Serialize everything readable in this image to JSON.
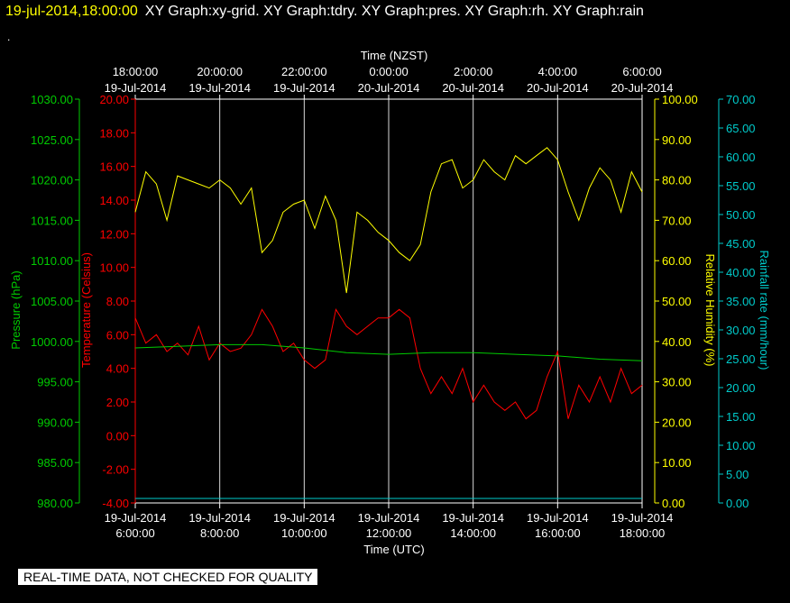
{
  "header": {
    "date_label": "19-jul-2014,18:00:00",
    "graphs_label": "XY Graph:xy-grid.  XY Graph:tdry.  XY Graph:pres.  XY Graph:rh.  XY Graph:rain",
    "dot": "."
  },
  "footer": {
    "quality_note": "REAL-TIME DATA, NOT CHECKED FOR QUALITY"
  },
  "chart_data": {
    "type": "line",
    "top_axis": {
      "label": "Time (NZST)",
      "ticks": [
        {
          "time": "18:00:00",
          "date": "19-Jul-2014"
        },
        {
          "time": "20:00:00",
          "date": "19-Jul-2014"
        },
        {
          "time": "22:00:00",
          "date": "19-Jul-2014"
        },
        {
          "time": "0:00:00",
          "date": "20-Jul-2014"
        },
        {
          "time": "2:00:00",
          "date": "20-Jul-2014"
        },
        {
          "time": "4:00:00",
          "date": "20-Jul-2014"
        },
        {
          "time": "6:00:00",
          "date": "20-Jul-2014"
        }
      ]
    },
    "bottom_axis": {
      "label": "Time (UTC)",
      "ticks": [
        {
          "date": "19-Jul-2014",
          "time": "6:00:00"
        },
        {
          "date": "19-Jul-2014",
          "time": "8:00:00"
        },
        {
          "date": "19-Jul-2014",
          "time": "10:00:00"
        },
        {
          "date": "19-Jul-2014",
          "time": "12:00:00"
        },
        {
          "date": "19-Jul-2014",
          "time": "14:00:00"
        },
        {
          "date": "19-Jul-2014",
          "time": "16:00:00"
        },
        {
          "date": "19-Jul-2014",
          "time": "18:00:00"
        }
      ],
      "x_hours_range": [
        6,
        18
      ],
      "grid": true
    },
    "y_axes": [
      {
        "id": "pressure",
        "label": "Pressure (hPa)",
        "color": "#00cc00",
        "min": 980,
        "max": 1030,
        "ticks": [
          "980.00",
          "985.00",
          "990.00",
          "995.00",
          "1000.00",
          "1005.00",
          "1010.00",
          "1015.00",
          "1020.00",
          "1025.00",
          "1030.00"
        ]
      },
      {
        "id": "temperature",
        "label": "Temperature (Celsius)",
        "color": "#ff0000",
        "min": -4,
        "max": 20,
        "ticks": [
          "-4.00",
          "-2.00",
          "0.00",
          "2.00",
          "4.00",
          "6.00",
          "8.00",
          "10.00",
          "12.00",
          "14.00",
          "16.00",
          "18.00",
          "20.00"
        ]
      },
      {
        "id": "humidity",
        "label": "Relative Humidity (%)",
        "color": "#ffff00",
        "min": 0,
        "max": 100,
        "ticks": [
          "0.00",
          "10.00",
          "20.00",
          "30.00",
          "40.00",
          "50.00",
          "60.00",
          "70.00",
          "80.00",
          "90.00",
          "100.00"
        ]
      },
      {
        "id": "rain",
        "label": "Rainfall rate (mm/hour)",
        "color": "#00cccc",
        "min": 0,
        "max": 70,
        "ticks": [
          "0.00",
          "5.00",
          "10.00",
          "15.00",
          "20.00",
          "25.00",
          "30.00",
          "35.00",
          "40.00",
          "45.00",
          "50.00",
          "55.00",
          "60.00",
          "65.00",
          "70.00"
        ]
      }
    ],
    "x_unit": "hours UTC",
    "series": [
      {
        "axis": "humidity",
        "color": "#ffff00",
        "x": [
          6.0,
          6.25,
          6.5,
          6.75,
          7.0,
          7.25,
          7.5,
          7.75,
          8.0,
          8.25,
          8.5,
          8.75,
          9.0,
          9.25,
          9.5,
          9.75,
          10.0,
          10.25,
          10.5,
          10.75,
          11.0,
          11.25,
          11.5,
          11.75,
          12.0,
          12.25,
          12.5,
          12.75,
          13.0,
          13.25,
          13.5,
          13.75,
          14.0,
          14.25,
          14.5,
          14.75,
          15.0,
          15.25,
          15.5,
          15.75,
          16.0,
          16.25,
          16.5,
          16.75,
          17.0,
          17.25,
          17.5,
          17.75,
          18.0
        ],
        "y": [
          72,
          82,
          79,
          70,
          81,
          80,
          79,
          78,
          80,
          78,
          74,
          78,
          62,
          65,
          72,
          74,
          75,
          68,
          76,
          70,
          52,
          72,
          70,
          67,
          65,
          62,
          60,
          64,
          77,
          84,
          85,
          78,
          80,
          85,
          82,
          80,
          86,
          84,
          86,
          88,
          85,
          77,
          70,
          78,
          83,
          80,
          72,
          82,
          77
        ]
      },
      {
        "axis": "temperature",
        "color": "#ff0000",
        "x": [
          6.0,
          6.25,
          6.5,
          6.75,
          7.0,
          7.25,
          7.5,
          7.75,
          8.0,
          8.25,
          8.5,
          8.75,
          9.0,
          9.25,
          9.5,
          9.75,
          10.0,
          10.25,
          10.5,
          10.75,
          11.0,
          11.25,
          11.5,
          11.75,
          12.0,
          12.25,
          12.5,
          12.75,
          13.0,
          13.25,
          13.5,
          13.75,
          14.0,
          14.25,
          14.5,
          14.75,
          15.0,
          15.25,
          15.5,
          15.75,
          16.0,
          16.25,
          16.5,
          16.75,
          17.0,
          17.25,
          17.5,
          17.75,
          18.0
        ],
        "y": [
          7.0,
          5.5,
          6.0,
          5.0,
          5.5,
          4.8,
          6.5,
          4.5,
          5.5,
          5.0,
          5.2,
          6.0,
          7.5,
          6.5,
          5.0,
          5.5,
          4.5,
          4.0,
          4.5,
          7.5,
          6.5,
          6.0,
          6.5,
          7.0,
          7.0,
          7.5,
          7.0,
          4.0,
          2.5,
          3.5,
          2.5,
          4.0,
          2.0,
          3.0,
          2.0,
          1.5,
          2.0,
          1.0,
          1.5,
          3.5,
          5.0,
          1.0,
          3.0,
          2.0,
          3.5,
          2.0,
          4.0,
          2.5,
          3.0
        ]
      },
      {
        "axis": "pressure",
        "color": "#00cc00",
        "x": [
          6,
          7,
          8,
          9,
          10,
          11,
          12,
          13,
          14,
          15,
          16,
          17,
          18
        ],
        "y": [
          999.2,
          999.4,
          999.6,
          999.6,
          999.2,
          998.6,
          998.4,
          998.6,
          998.6,
          998.4,
          998.2,
          997.8,
          997.6
        ]
      },
      {
        "axis": "rain",
        "color": "#00cccc",
        "x": [
          6,
          18
        ],
        "y": [
          0,
          0
        ]
      }
    ]
  }
}
